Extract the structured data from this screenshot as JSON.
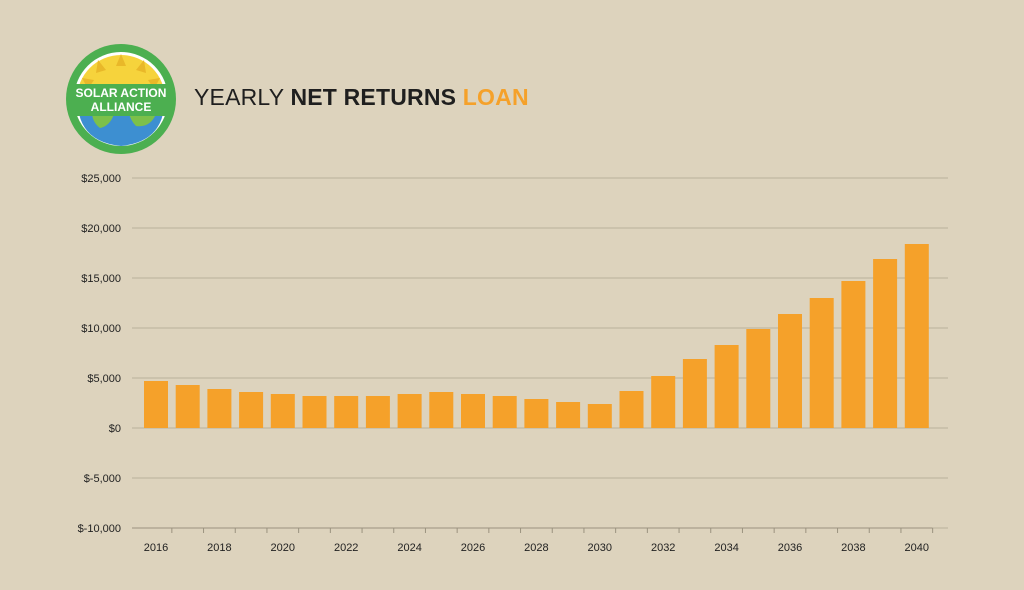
{
  "logo": {
    "line1": "SOLAR ACTION",
    "line2": "ALLIANCE",
    "colors": {
      "ring": "#4caf50",
      "sun": "#f6d33c",
      "earth": "#3d8fd1",
      "land": "#7cc04a"
    }
  },
  "title": {
    "part1": "YEARLY ",
    "part2": "NET RETURNS",
    "part3": " LOAN",
    "accent_color": "#f5a12a"
  },
  "chart_data": {
    "type": "bar",
    "title": "YEARLY NET RETURNS LOAN",
    "bar_color": "#f5a12a",
    "grid": true,
    "ylim": [
      -10000,
      25000
    ],
    "y_ticks": [
      25000,
      20000,
      15000,
      10000,
      5000,
      0,
      -5000,
      -10000
    ],
    "y_tick_labels": [
      "$25,000",
      "$20,000",
      "$15,000",
      "$10,000",
      "$5,000",
      "$0",
      "$-5,000",
      "$-10,000"
    ],
    "categories": [
      "2016",
      "2017",
      "2018",
      "2019",
      "2020",
      "2021",
      "2022",
      "2023",
      "2024",
      "2025",
      "2026",
      "2027",
      "2028",
      "2029",
      "2030",
      "2031",
      "2032",
      "2033",
      "2034",
      "2035",
      "2036",
      "2037",
      "2038",
      "2039",
      "2040"
    ],
    "x_tick_labels": [
      "2016",
      "",
      "2018",
      "",
      "2020",
      "",
      "2022",
      "",
      "2024",
      "",
      "2026",
      "",
      "2028",
      "",
      "2030",
      "",
      "2032",
      "",
      "2034",
      "",
      "2036",
      "",
      "2038",
      "",
      "2040"
    ],
    "values": [
      4700,
      4300,
      3900,
      3600,
      3400,
      3200,
      3200,
      3200,
      3400,
      3600,
      3400,
      3200,
      2900,
      2600,
      2400,
      3700,
      5200,
      6900,
      8300,
      9900,
      11400,
      13000,
      14700,
      16900,
      18400
    ]
  }
}
